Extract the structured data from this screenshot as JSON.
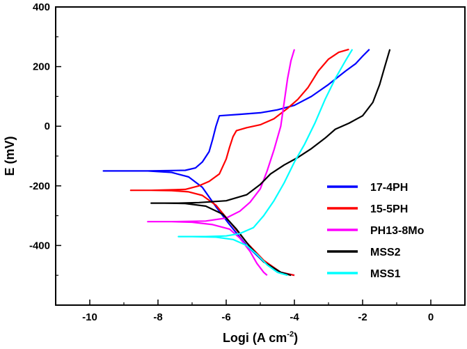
{
  "chart_data": {
    "type": "line",
    "xlabel": "Logi (A cm",
    "xlabel_sup": "-2",
    "xlabel_close": ")",
    "ylabel": "E (mV)",
    "xlim": [
      -11,
      1
    ],
    "ylim": [
      -600,
      400
    ],
    "x_ticks": [
      -10,
      -8,
      -6,
      -4,
      -2,
      0
    ],
    "y_ticks": [
      -400,
      -200,
      0,
      200,
      400
    ],
    "grid": false,
    "legend_position": "lower-right",
    "series": [
      {
        "name": "17-4PH",
        "color": "#0000ff",
        "points": [
          [
            -4.0,
            -500
          ],
          [
            -4.4,
            -490
          ],
          [
            -4.9,
            -455
          ],
          [
            -5.4,
            -400
          ],
          [
            -5.9,
            -330
          ],
          [
            -6.3,
            -270
          ],
          [
            -6.7,
            -205
          ],
          [
            -7.1,
            -170
          ],
          [
            -7.6,
            -155
          ],
          [
            -8.3,
            -150
          ],
          [
            -9.6,
            -150
          ],
          [
            -8.3,
            -150
          ],
          [
            -7.2,
            -148
          ],
          [
            -6.9,
            -140
          ],
          [
            -6.7,
            -120
          ],
          [
            -6.5,
            -85
          ],
          [
            -6.4,
            -45
          ],
          [
            -6.3,
            0
          ],
          [
            -6.2,
            35
          ],
          [
            -5.6,
            40
          ],
          [
            -5.0,
            45
          ],
          [
            -4.5,
            55
          ],
          [
            -4.0,
            70
          ],
          [
            -3.5,
            100
          ],
          [
            -3.0,
            140
          ],
          [
            -2.5,
            185
          ],
          [
            -2.2,
            210
          ],
          [
            -2.0,
            235
          ],
          [
            -1.8,
            258
          ]
        ]
      },
      {
        "name": "15-5PH",
        "color": "#ff0000",
        "points": [
          [
            -4.0,
            -500
          ],
          [
            -4.4,
            -490
          ],
          [
            -4.9,
            -450
          ],
          [
            -5.4,
            -390
          ],
          [
            -5.9,
            -320
          ],
          [
            -6.3,
            -265
          ],
          [
            -6.7,
            -232
          ],
          [
            -7.1,
            -220
          ],
          [
            -7.6,
            -216
          ],
          [
            -8.2,
            -215
          ],
          [
            -8.8,
            -215
          ],
          [
            -8.2,
            -215
          ],
          [
            -7.2,
            -212
          ],
          [
            -6.8,
            -200
          ],
          [
            -6.5,
            -185
          ],
          [
            -6.2,
            -160
          ],
          [
            -6.0,
            -110
          ],
          [
            -5.9,
            -70
          ],
          [
            -5.8,
            -35
          ],
          [
            -5.7,
            -15
          ],
          [
            -5.4,
            -5
          ],
          [
            -5.0,
            5
          ],
          [
            -4.6,
            25
          ],
          [
            -4.2,
            60
          ],
          [
            -3.9,
            90
          ],
          [
            -3.6,
            130
          ],
          [
            -3.3,
            185
          ],
          [
            -3.0,
            225
          ],
          [
            -2.7,
            248
          ],
          [
            -2.4,
            258
          ]
        ]
      },
      {
        "name": "PH13-8Mo",
        "color": "#ff00ff",
        "points": [
          [
            -4.8,
            -500
          ],
          [
            -4.9,
            -490
          ],
          [
            -5.1,
            -460
          ],
          [
            -5.3,
            -420
          ],
          [
            -5.6,
            -375
          ],
          [
            -5.9,
            -345
          ],
          [
            -6.4,
            -330
          ],
          [
            -7.0,
            -322
          ],
          [
            -7.6,
            -320
          ],
          [
            -8.3,
            -320
          ],
          [
            -7.6,
            -320
          ],
          [
            -6.6,
            -318
          ],
          [
            -6.0,
            -308
          ],
          [
            -5.6,
            -285
          ],
          [
            -5.3,
            -255
          ],
          [
            -5.0,
            -210
          ],
          [
            -4.8,
            -150
          ],
          [
            -4.6,
            -80
          ],
          [
            -4.4,
            0
          ],
          [
            -4.3,
            80
          ],
          [
            -4.2,
            160
          ],
          [
            -4.1,
            220
          ],
          [
            -4.0,
            258
          ]
        ]
      },
      {
        "name": "MSS2",
        "color": "#000000",
        "points": [
          [
            -4.1,
            -500
          ],
          [
            -4.4,
            -490
          ],
          [
            -4.9,
            -455
          ],
          [
            -5.3,
            -405
          ],
          [
            -5.7,
            -345
          ],
          [
            -6.1,
            -295
          ],
          [
            -6.6,
            -268
          ],
          [
            -7.2,
            -259
          ],
          [
            -7.8,
            -258
          ],
          [
            -8.2,
            -258
          ],
          [
            -7.4,
            -258
          ],
          [
            -6.8,
            -256
          ],
          [
            -6.0,
            -250
          ],
          [
            -5.4,
            -230
          ],
          [
            -5.0,
            -195
          ],
          [
            -4.7,
            -160
          ],
          [
            -4.3,
            -130
          ],
          [
            -3.9,
            -105
          ],
          [
            -3.5,
            -75
          ],
          [
            -3.1,
            -40
          ],
          [
            -2.8,
            -10
          ],
          [
            -2.4,
            10
          ],
          [
            -2.0,
            35
          ],
          [
            -1.7,
            80
          ],
          [
            -1.5,
            140
          ],
          [
            -1.35,
            200
          ],
          [
            -1.2,
            258
          ]
        ]
      },
      {
        "name": "MSS1",
        "color": "#00ffff",
        "points": [
          [
            -4.2,
            -500
          ],
          [
            -4.5,
            -490
          ],
          [
            -4.8,
            -465
          ],
          [
            -5.1,
            -430
          ],
          [
            -5.4,
            -400
          ],
          [
            -5.8,
            -380
          ],
          [
            -6.3,
            -372
          ],
          [
            -7.0,
            -370
          ],
          [
            -7.4,
            -370
          ],
          [
            -6.6,
            -370
          ],
          [
            -6.0,
            -368
          ],
          [
            -5.6,
            -360
          ],
          [
            -5.2,
            -340
          ],
          [
            -4.9,
            -300
          ],
          [
            -4.6,
            -250
          ],
          [
            -4.3,
            -190
          ],
          [
            -4.0,
            -120
          ],
          [
            -3.7,
            -60
          ],
          [
            -3.4,
            10
          ],
          [
            -3.1,
            90
          ],
          [
            -2.8,
            160
          ],
          [
            -2.5,
            220
          ],
          [
            -2.3,
            258
          ]
        ]
      }
    ]
  }
}
